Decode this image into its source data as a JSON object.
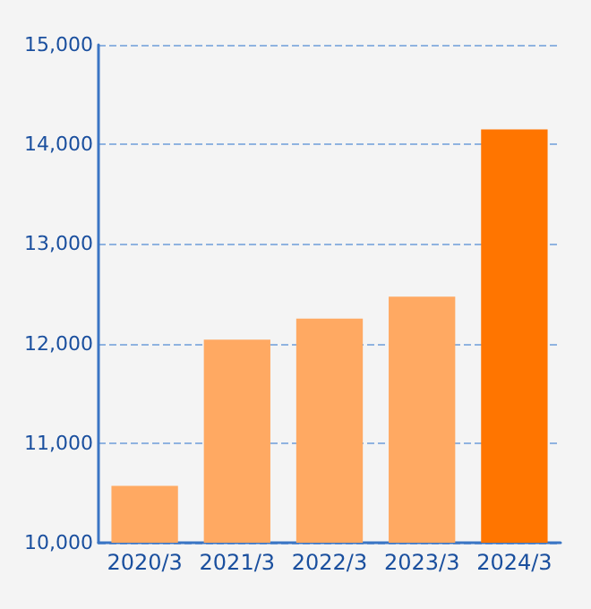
{
  "chart_data": {
    "type": "bar",
    "categories": [
      "2020/3",
      "2021/3",
      "2022/3",
      "2023/3",
      "2024/3"
    ],
    "values": [
      10570,
      12040,
      12250,
      12470,
      14150
    ],
    "colors": [
      "#ffa962",
      "#ffa962",
      "#ffa962",
      "#ffa962",
      "#ff7500"
    ],
    "ylim": [
      10000,
      15000
    ],
    "yticks": [
      {
        "value": 10000,
        "label": "10,000"
      },
      {
        "value": 11000,
        "label": "11,000"
      },
      {
        "value": 12000,
        "label": "12,000"
      },
      {
        "value": 13000,
        "label": "13,000"
      },
      {
        "value": 14000,
        "label": "14,000"
      },
      {
        "value": 15000,
        "label": "15,000"
      }
    ],
    "grid": "y"
  }
}
